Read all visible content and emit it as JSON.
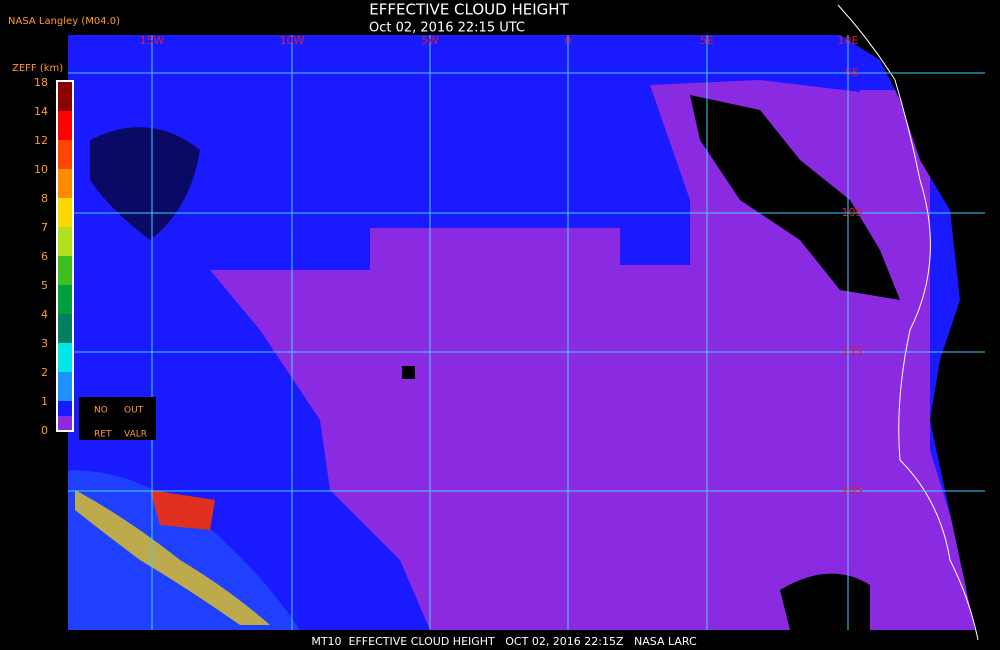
{
  "header": {
    "source": "NASA Langley (M04.0)",
    "title": "EFFECTIVE CLOUD HEIGHT",
    "datetime": "Oct 02, 2016 22:15 UTC"
  },
  "map": {
    "lon_labels": [
      "15W",
      "10W",
      "5W",
      "0",
      "5E",
      "10E"
    ],
    "lat_labels": [
      "5S",
      "10S",
      "15S",
      "20S"
    ]
  },
  "colorbar": {
    "unit": "ZEFF (km)",
    "ticks": [
      "18",
      "14",
      "12",
      "10",
      "8",
      "7",
      "6",
      "5",
      "4",
      "3",
      "2",
      "1",
      "0"
    ],
    "legend": [
      "NO",
      "OUT",
      "RET",
      "VALR"
    ]
  },
  "footer": "MT10  EFFECTIVE CLOUD HEIGHT   OCT 02, 2016 22:15Z   NASA LARC"
}
